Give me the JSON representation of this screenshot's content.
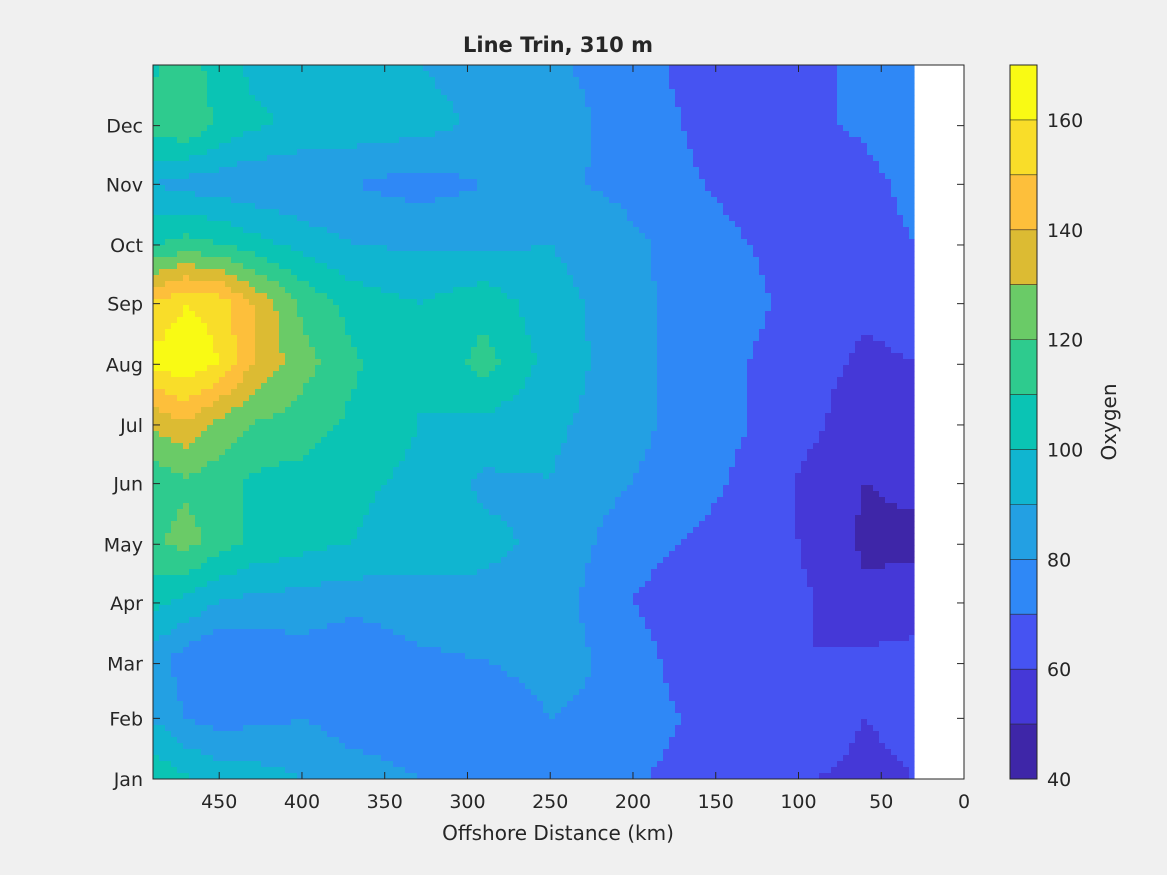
{
  "chart_data": {
    "type": "heatmap",
    "subtype": "filled-contour",
    "title": "Line Trin, 310 m",
    "xlabel": "Offshore Distance (km)",
    "ylabel": "",
    "xlim": [
      490,
      0
    ],
    "x_reversed": true,
    "x_ticks": [
      450,
      400,
      350,
      300,
      250,
      200,
      150,
      100,
      50,
      0
    ],
    "y_ticks": [
      "Jan",
      "Feb",
      "Mar",
      "Apr",
      "May",
      "Jun",
      "Jul",
      "Aug",
      "Sep",
      "Oct",
      "Nov",
      "Dec"
    ],
    "y_tick_days": [
      0,
      31,
      59,
      90,
      120,
      151,
      181,
      212,
      243,
      273,
      304,
      334
    ],
    "ylim_days": [
      0,
      365
    ],
    "data_extent_x": [
      490,
      30
    ],
    "colorbar": {
      "label": "Oxygen",
      "range": [
        40,
        170
      ],
      "levels": 13,
      "ticks": [
        40,
        60,
        80,
        100,
        120,
        140,
        160
      ],
      "colors": [
        "#3e26a8",
        "#4538d7",
        "#4653f2",
        "#3f6efe",
        "#2f88f6",
        "#23a0e3",
        "#10b5d0",
        "#0ac4b4",
        "#2ecb8e",
        "#6acb67",
        "#a8c541",
        "#dcbb33",
        "#fdbf3b",
        "#f9dd29",
        "#f9fa14"
      ]
    },
    "profile_distances": [
      490,
      470,
      450,
      430,
      400,
      370,
      330,
      290,
      250,
      210,
      170,
      130,
      90,
      60,
      30
    ],
    "oxygen_profiles": [
      {
        "month": "Jan",
        "values": [
          108,
          102,
          96,
          95,
          90,
          84,
          80,
          78,
          78,
          74,
          66,
          63,
          60,
          58,
          60
        ]
      },
      {
        "month": "Feb",
        "values": [
          90,
          80,
          76,
          78,
          80,
          76,
          76,
          72,
          80,
          77,
          70,
          66,
          64,
          60,
          62
        ]
      },
      {
        "month": "Mar",
        "values": [
          86,
          74,
          70,
          70,
          76,
          70,
          78,
          80,
          84,
          78,
          66,
          62,
          60,
          62,
          64
        ]
      },
      {
        "month": "Apr",
        "values": [
          104,
          98,
          90,
          88,
          86,
          84,
          86,
          88,
          86,
          72,
          64,
          64,
          60,
          52,
          54
        ]
      },
      {
        "month": "May",
        "values": [
          118,
          124,
          116,
          108,
          104,
          100,
          96,
          92,
          88,
          76,
          70,
          66,
          58,
          48,
          48
        ]
      },
      {
        "month": "Jun",
        "values": [
          114,
          118,
          114,
          108,
          106,
          102,
          98,
          88,
          90,
          82,
          74,
          68,
          56,
          50,
          52
        ]
      },
      {
        "month": "Jul",
        "values": [
          132,
          140,
          128,
          120,
          116,
          108,
          100,
          98,
          92,
          86,
          76,
          70,
          62,
          52,
          56
        ]
      },
      {
        "month": "Aug",
        "values": [
          164,
          168,
          160,
          140,
          124,
          112,
          100,
          114,
          96,
          86,
          76,
          70,
          64,
          58,
          60
        ]
      },
      {
        "month": "Sep",
        "values": [
          150,
          160,
          156,
          140,
          118,
          106,
          100,
          106,
          94,
          86,
          76,
          72,
          66,
          62,
          64
        ]
      },
      {
        "month": "Oct",
        "values": [
          108,
          114,
          110,
          104,
          96,
          90,
          88,
          88,
          90,
          84,
          76,
          70,
          66,
          64,
          70
        ]
      },
      {
        "month": "Nov",
        "values": [
          90,
          86,
          84,
          82,
          80,
          80,
          76,
          80,
          82,
          78,
          72,
          66,
          64,
          66,
          74
        ]
      },
      {
        "month": "Dec",
        "values": [
          114,
          120,
          108,
          102,
          98,
          96,
          94,
          88,
          84,
          78,
          70,
          62,
          68,
          72,
          80
        ]
      },
      {
        "month": "Jan",
        "values": [
          108,
          116,
          104,
          98,
          96,
          92,
          90,
          86,
          82,
          76,
          68,
          64,
          68,
          72,
          80
        ]
      }
    ],
    "grid": false
  }
}
